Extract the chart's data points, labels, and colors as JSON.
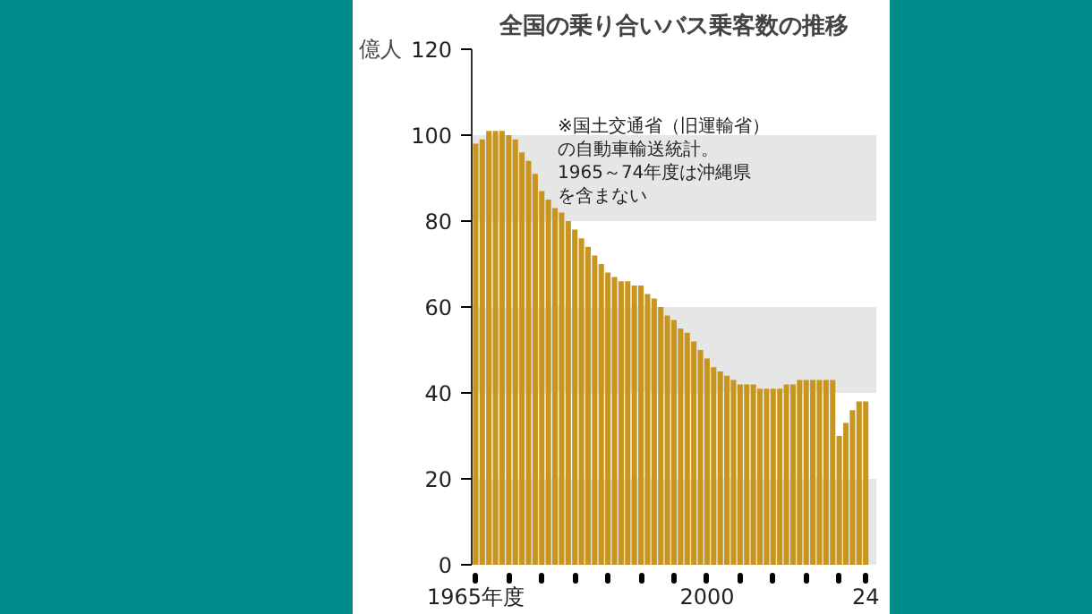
{
  "chart_data": {
    "type": "bar",
    "title": "全国の乗り合いバス乗客数の推移",
    "ylabel": "億人",
    "annotations": [
      "※国土交通省（旧運輸省）",
      "の自動車輸送統計。",
      "1965～74年度は沖縄県",
      "を含まない"
    ],
    "x": [
      1965,
      1966,
      1967,
      1968,
      1969,
      1970,
      1971,
      1972,
      1973,
      1974,
      1975,
      1976,
      1977,
      1978,
      1979,
      1980,
      1981,
      1982,
      1983,
      1984,
      1985,
      1986,
      1987,
      1988,
      1989,
      1990,
      1991,
      1992,
      1993,
      1994,
      1995,
      1996,
      1997,
      1998,
      1999,
      2000,
      2001,
      2002,
      2003,
      2004,
      2005,
      2006,
      2007,
      2008,
      2009,
      2010,
      2011,
      2012,
      2013,
      2014,
      2015,
      2016,
      2017,
      2018,
      2019,
      2020,
      2021,
      2022,
      2023,
      2024
    ],
    "values": [
      98,
      99,
      101,
      101,
      101,
      100,
      99,
      96,
      94,
      91,
      87,
      85,
      83,
      82,
      80,
      78,
      76,
      74,
      72,
      70,
      68,
      67,
      66,
      66,
      65,
      65,
      63,
      62,
      60,
      58,
      57,
      55,
      54,
      52,
      50,
      48,
      46,
      45,
      44,
      43,
      42,
      42,
      42,
      41,
      41,
      41,
      41,
      42,
      42,
      43,
      43,
      43,
      43,
      43,
      43,
      30,
      33,
      36,
      38,
      38
    ],
    "color": "#c8961e",
    "xlim": [
      1964.4,
      2025.6
    ],
    "xticks": [
      {
        "value": 1965,
        "label": "1965年度"
      },
      {
        "value": 1970,
        "label": null
      },
      {
        "value": 1975,
        "label": null
      },
      {
        "value": 1980,
        "label": null
      },
      {
        "value": 1985,
        "label": null
      },
      {
        "value": 1990,
        "label": null
      },
      {
        "value": 1995,
        "label": null
      },
      2000,
      {
        "value": 2005,
        "label": null
      },
      {
        "value": 2010,
        "label": null
      },
      {
        "value": 2015,
        "label": null
      },
      {
        "value": 2020,
        "label": null
      },
      {
        "value": 2024,
        "label": "24"
      }
    ],
    "ylim": [
      0,
      120
    ],
    "yticks": [
      0,
      20,
      40,
      60,
      80,
      100,
      120
    ],
    "bands": [
      {
        "axis": "y",
        "from": 0,
        "to": 20,
        "color": "#e6e6e6"
      },
      {
        "axis": "y",
        "from": 40,
        "to": 60,
        "color": "#e6e6e6"
      },
      {
        "axis": "y",
        "from": 80,
        "to": 100,
        "color": "#e6e6e6"
      }
    ],
    "grid": false
  }
}
